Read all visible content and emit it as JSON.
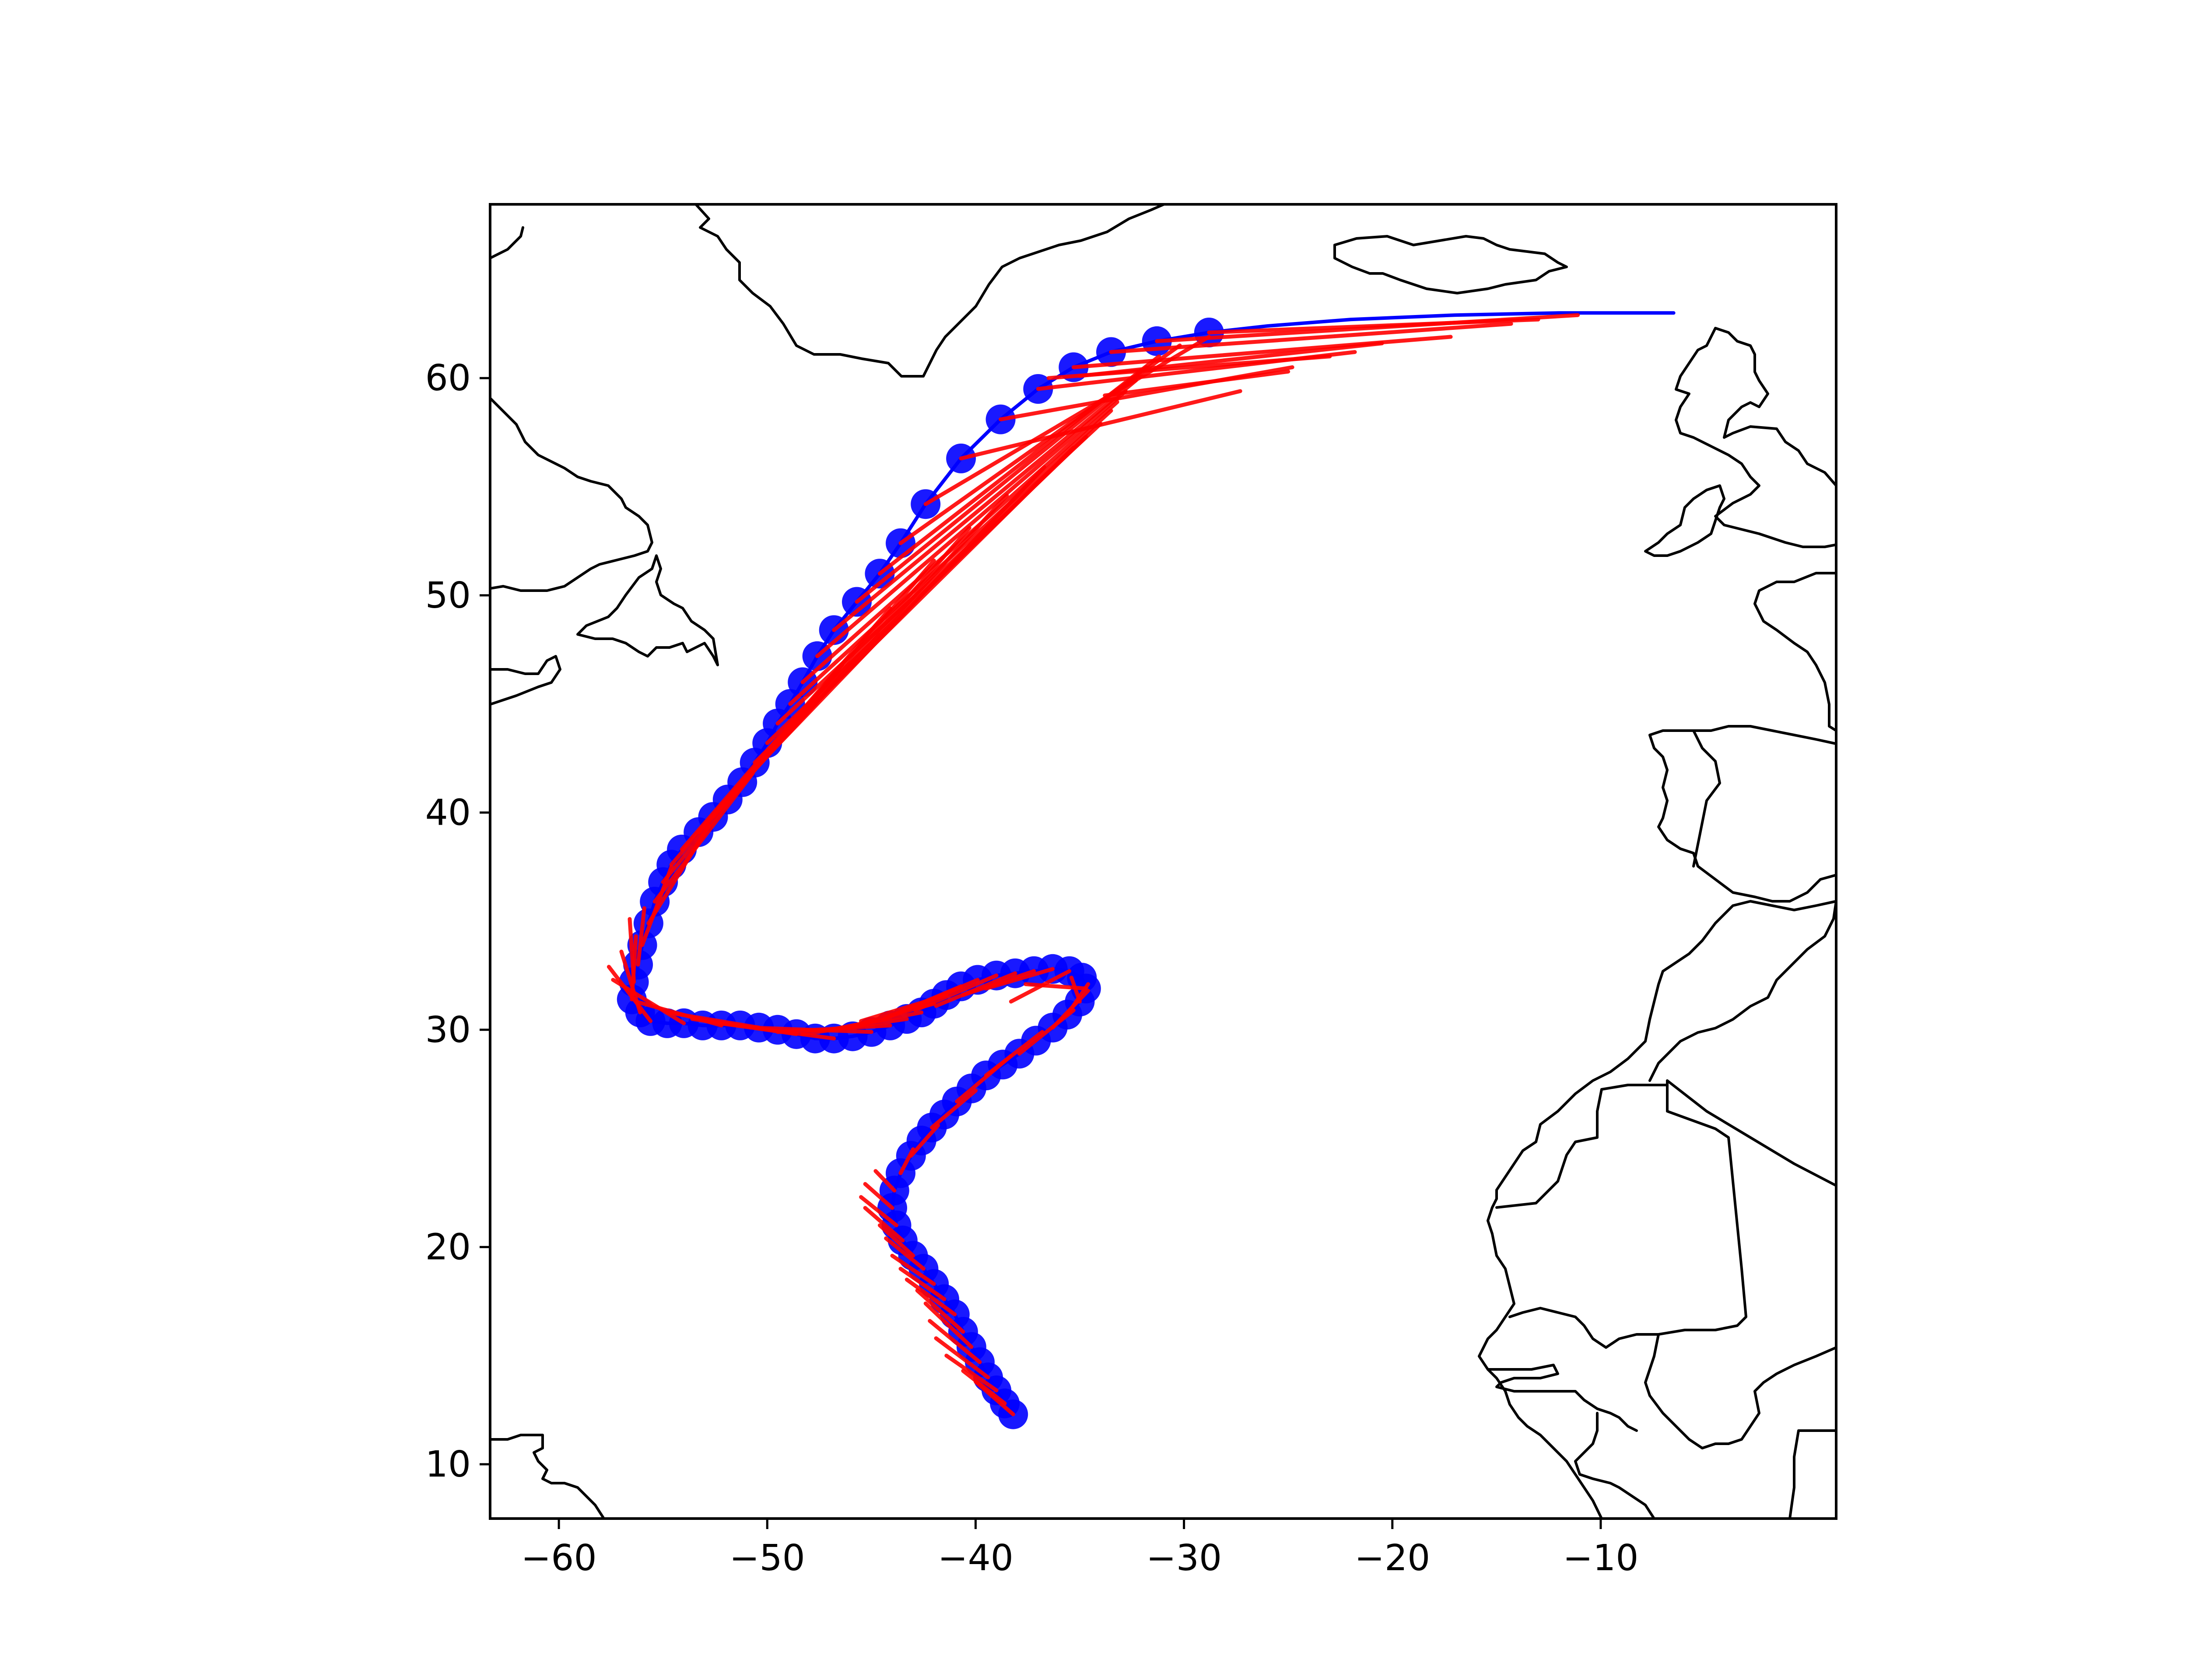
{
  "chart_data": {
    "type": "map-trajectory",
    "xlim": [
      -63.3,
      1.3
    ],
    "ylim": [
      7.5,
      68.0
    ],
    "x_ticks": [
      {
        "value": -60,
        "label": "−60"
      },
      {
        "value": -50,
        "label": "−50"
      },
      {
        "value": -40,
        "label": "−40"
      },
      {
        "value": -30,
        "label": "−30"
      },
      {
        "value": -20,
        "label": "−20"
      },
      {
        "value": -10,
        "label": "−10"
      }
    ],
    "y_ticks": [
      {
        "value": 10,
        "label": "10"
      },
      {
        "value": 20,
        "label": "20"
      },
      {
        "value": 30,
        "label": "30"
      },
      {
        "value": 40,
        "label": "40"
      },
      {
        "value": 50,
        "label": "50"
      },
      {
        "value": 60,
        "label": "60"
      }
    ],
    "grid": false,
    "colors": {
      "observed": "#0000ff",
      "forecast": "#ff0000",
      "coastline": "#000000"
    },
    "observed_track": [
      [
        -38.2,
        12.3
      ],
      [
        -38.6,
        12.8
      ],
      [
        -39.0,
        13.4
      ],
      [
        -39.4,
        14.0
      ],
      [
        -39.8,
        14.7
      ],
      [
        -40.2,
        15.4
      ],
      [
        -40.6,
        16.1
      ],
      [
        -41.0,
        16.9
      ],
      [
        -41.5,
        17.6
      ],
      [
        -42.0,
        18.3
      ],
      [
        -42.5,
        19.0
      ],
      [
        -43.0,
        19.6
      ],
      [
        -43.5,
        20.3
      ],
      [
        -43.8,
        21.0
      ],
      [
        -44.0,
        21.8
      ],
      [
        -43.9,
        22.6
      ],
      [
        -43.6,
        23.4
      ],
      [
        -43.1,
        24.2
      ],
      [
        -42.6,
        24.9
      ],
      [
        -42.1,
        25.5
      ],
      [
        -41.5,
        26.1
      ],
      [
        -40.9,
        26.7
      ],
      [
        -40.2,
        27.3
      ],
      [
        -39.5,
        27.9
      ],
      [
        -38.7,
        28.4
      ],
      [
        -37.9,
        28.9
      ],
      [
        -37.1,
        29.5
      ],
      [
        -36.3,
        30.1
      ],
      [
        -35.6,
        30.7
      ],
      [
        -35.0,
        31.3
      ],
      [
        -34.7,
        31.9
      ],
      [
        -34.9,
        32.4
      ],
      [
        -35.5,
        32.7
      ],
      [
        -36.3,
        32.8
      ],
      [
        -37.2,
        32.7
      ],
      [
        -38.1,
        32.6
      ],
      [
        -39.0,
        32.5
      ],
      [
        -39.9,
        32.3
      ],
      [
        -40.7,
        32.0
      ],
      [
        -41.4,
        31.6
      ],
      [
        -42.0,
        31.2
      ],
      [
        -42.6,
        30.8
      ],
      [
        -43.3,
        30.5
      ],
      [
        -44.1,
        30.2
      ],
      [
        -45.0,
        29.9
      ],
      [
        -45.9,
        29.7
      ],
      [
        -46.8,
        29.6
      ],
      [
        -47.7,
        29.6
      ],
      [
        -48.6,
        29.8
      ],
      [
        -49.5,
        30.0
      ],
      [
        -50.4,
        30.1
      ],
      [
        -51.3,
        30.2
      ],
      [
        -52.2,
        30.2
      ],
      [
        -53.1,
        30.2
      ],
      [
        -54.0,
        30.3
      ],
      [
        -54.8,
        30.3
      ],
      [
        -55.6,
        30.4
      ],
      [
        -56.1,
        30.8
      ],
      [
        -56.5,
        31.4
      ],
      [
        -56.4,
        32.2
      ],
      [
        -56.2,
        33.0
      ],
      [
        -56.0,
        33.9
      ],
      [
        -55.7,
        34.9
      ],
      [
        -55.4,
        35.9
      ],
      [
        -55.0,
        36.8
      ],
      [
        -54.6,
        37.6
      ],
      [
        -54.1,
        38.3
      ],
      [
        -53.3,
        39.1
      ],
      [
        -52.6,
        39.8
      ],
      [
        -51.9,
        40.6
      ],
      [
        -51.2,
        41.4
      ],
      [
        -50.6,
        42.3
      ],
      [
        -50.0,
        43.2
      ],
      [
        -49.5,
        44.1
      ],
      [
        -48.9,
        45.0
      ],
      [
        -48.3,
        46.0
      ],
      [
        -47.6,
        47.2
      ],
      [
        -46.8,
        48.4
      ],
      [
        -45.7,
        49.7
      ],
      [
        -44.6,
        51.0
      ],
      [
        -43.6,
        52.4
      ],
      [
        -42.4,
        54.2
      ],
      [
        -40.7,
        56.3
      ],
      [
        -38.8,
        58.1
      ],
      [
        -37.0,
        59.5
      ],
      [
        -35.3,
        60.5
      ],
      [
        -33.5,
        61.2
      ],
      [
        -31.3,
        61.7
      ],
      [
        -28.8,
        62.1
      ],
      [
        -26.0,
        62.4
      ],
      [
        -22.0,
        62.7
      ],
      [
        -17.0,
        62.9
      ],
      [
        -12.0,
        63.0
      ],
      [
        -6.5,
        63.0
      ]
    ],
    "forecast_segments": [
      [
        [
          -38.2,
          12.3
        ],
        [
          -40.0,
          13.8
        ]
      ],
      [
        [
          -38.6,
          12.8
        ],
        [
          -40.6,
          14.3
        ]
      ],
      [
        [
          -39.0,
          13.4
        ],
        [
          -41.4,
          15.0
        ]
      ],
      [
        [
          -39.4,
          14.0
        ],
        [
          -41.9,
          15.8
        ]
      ],
      [
        [
          -39.8,
          14.7
        ],
        [
          -42.2,
          16.6
        ]
      ],
      [
        [
          -40.2,
          15.4
        ],
        [
          -42.4,
          17.4
        ]
      ],
      [
        [
          -40.6,
          16.1
        ],
        [
          -42.8,
          18.0
        ]
      ],
      [
        [
          -41.0,
          16.9
        ],
        [
          -43.3,
          18.5
        ]
      ],
      [
        [
          -41.5,
          17.6
        ],
        [
          -43.6,
          19.0
        ]
      ],
      [
        [
          -42.0,
          18.3
        ],
        [
          -44.0,
          19.6
        ]
      ],
      [
        [
          -42.5,
          19.0
        ],
        [
          -44.3,
          20.4
        ]
      ],
      [
        [
          -43.0,
          19.6
        ],
        [
          -44.6,
          21.0
        ]
      ],
      [
        [
          -43.5,
          20.3
        ],
        [
          -45.3,
          21.8
        ]
      ],
      [
        [
          -43.8,
          21.0
        ],
        [
          -45.5,
          22.3
        ]
      ],
      [
        [
          -44.0,
          21.8
        ],
        [
          -45.3,
          22.9
        ]
      ],
      [
        [
          -43.9,
          22.6
        ],
        [
          -44.8,
          23.5
        ]
      ],
      [
        [
          -43.6,
          23.4
        ],
        [
          -43.0,
          24.5
        ]
      ],
      [
        [
          -43.1,
          24.2
        ],
        [
          -41.8,
          25.6
        ]
      ],
      [
        [
          -42.1,
          25.5
        ],
        [
          -40.0,
          27.2
        ]
      ],
      [
        [
          -40.9,
          26.7
        ],
        [
          -38.3,
          28.8
        ]
      ],
      [
        [
          -39.5,
          27.9
        ],
        [
          -36.8,
          29.9
        ]
      ],
      [
        [
          -37.9,
          28.9
        ],
        [
          -35.3,
          30.9
        ]
      ],
      [
        [
          -36.3,
          30.1
        ],
        [
          -34.6,
          31.8
        ]
      ],
      [
        [
          -35.6,
          30.7
        ],
        [
          -34.6,
          32.1
        ]
      ],
      [
        [
          -35.0,
          31.3
        ],
        [
          -35.4,
          32.4
        ]
      ],
      [
        [
          -34.7,
          31.9
        ],
        [
          -37.6,
          32.1
        ]
      ],
      [
        [
          -35.5,
          32.7
        ],
        [
          -38.3,
          31.3
        ]
      ],
      [
        [
          -36.3,
          32.8
        ],
        [
          -39.5,
          31.9
        ]
      ],
      [
        [
          -37.2,
          32.7
        ],
        [
          -40.6,
          31.6
        ]
      ],
      [
        [
          -38.1,
          32.6
        ],
        [
          -41.9,
          31.1
        ]
      ],
      [
        [
          -39.0,
          32.5
        ],
        [
          -42.9,
          30.9
        ]
      ],
      [
        [
          -39.9,
          32.3
        ],
        [
          -43.6,
          30.8
        ]
      ],
      [
        [
          -40.7,
          32.0
        ],
        [
          -44.4,
          30.5
        ]
      ],
      [
        [
          -41.4,
          31.6
        ],
        [
          -45.5,
          30.4
        ]
      ],
      [
        [
          -42.0,
          31.2
        ],
        [
          -46.2,
          30.1
        ]
      ],
      [
        [
          -42.6,
          30.8
        ],
        [
          -47.0,
          30.0
        ]
      ],
      [
        [
          -43.3,
          30.5
        ],
        [
          -48.3,
          29.8
        ]
      ],
      [
        [
          -44.1,
          30.2
        ],
        [
          -49.5,
          29.9
        ]
      ],
      [
        [
          -45.0,
          29.9
        ],
        [
          -50.8,
          30.1
        ]
      ],
      [
        [
          -46.8,
          29.6
        ],
        [
          -52.3,
          30.3
        ]
      ],
      [
        [
          -48.6,
          29.8
        ],
        [
          -53.6,
          30.5
        ]
      ],
      [
        [
          -50.4,
          30.1
        ],
        [
          -54.8,
          30.8
        ]
      ],
      [
        [
          -52.2,
          30.2
        ],
        [
          -56.3,
          31.3
        ]
      ],
      [
        [
          -54.0,
          30.3
        ],
        [
          -57.4,
          32.3
        ]
      ],
      [
        [
          -55.6,
          30.4
        ],
        [
          -57.6,
          32.9
        ]
      ],
      [
        [
          -56.1,
          30.8
        ],
        [
          -57.0,
          33.6
        ]
      ],
      [
        [
          -56.5,
          31.4
        ],
        [
          -56.3,
          34.3
        ]
      ],
      [
        [
          -56.4,
          32.2
        ],
        [
          -56.6,
          35.1
        ]
      ],
      [
        [
          -56.2,
          33.0
        ],
        [
          -55.9,
          35.6
        ]
      ],
      [
        [
          -56.0,
          33.9
        ],
        [
          -54.6,
          37.5
        ]
      ],
      [
        [
          -55.7,
          34.9
        ],
        [
          -52.8,
          39.4
        ]
      ],
      [
        [
          -55.4,
          35.9
        ],
        [
          -50.7,
          41.8
        ]
      ],
      [
        [
          -55.0,
          36.8
        ],
        [
          -48.6,
          44.3
        ]
      ],
      [
        [
          -54.6,
          37.6
        ],
        [
          -46.4,
          46.8
        ]
      ],
      [
        [
          -54.1,
          38.3
        ],
        [
          -44.1,
          49.4
        ]
      ],
      [
        [
          -53.3,
          39.1
        ],
        [
          -42.0,
          51.6
        ]
      ],
      [
        [
          -52.6,
          39.8
        ],
        [
          -40.3,
          53.1
        ]
      ],
      [
        [
          -51.9,
          40.6
        ],
        [
          -38.5,
          54.6
        ]
      ],
      [
        [
          -51.2,
          41.4
        ],
        [
          -36.7,
          55.9
        ]
      ],
      [
        [
          -50.6,
          42.3
        ],
        [
          -35.3,
          56.8
        ]
      ],
      [
        [
          -50.0,
          43.2
        ],
        [
          -34.7,
          57.3
        ]
      ],
      [
        [
          -49.5,
          44.1
        ],
        [
          -34.0,
          57.9
        ]
      ],
      [
        [
          -48.9,
          45.0
        ],
        [
          -33.5,
          58.5
        ]
      ],
      [
        [
          -48.3,
          46.0
        ],
        [
          -33.2,
          58.9
        ]
      ],
      [
        [
          -47.6,
          47.2
        ],
        [
          -32.8,
          59.4
        ]
      ],
      [
        [
          -46.8,
          48.4
        ],
        [
          -32.3,
          59.9
        ]
      ],
      [
        [
          -45.7,
          49.7
        ],
        [
          -31.8,
          60.5
        ]
      ],
      [
        [
          -44.6,
          51.0
        ],
        [
          -31.2,
          61.0
        ]
      ],
      [
        [
          -43.6,
          52.4
        ],
        [
          -30.2,
          61.5
        ]
      ],
      [
        [
          -42.4,
          54.2
        ],
        [
          -28.8,
          61.9
        ]
      ],
      [
        [
          -40.7,
          56.3
        ],
        [
          -27.3,
          59.4
        ]
      ],
      [
        [
          -38.8,
          58.1
        ],
        [
          -24.8,
          60.5
        ]
      ],
      [
        [
          -37.0,
          59.5
        ],
        [
          -21.8,
          61.2
        ]
      ],
      [
        [
          -35.3,
          60.5
        ],
        [
          -17.2,
          61.9
        ]
      ],
      [
        [
          -33.5,
          61.2
        ],
        [
          -14.3,
          62.5
        ]
      ],
      [
        [
          -31.3,
          61.7
        ],
        [
          -11.1,
          62.9
        ]
      ],
      [
        [
          -28.8,
          62.1
        ],
        [
          -13.0,
          62.7
        ]
      ],
      [
        [
          -35.0,
          60.1
        ],
        [
          -20.5,
          61.6
        ]
      ],
      [
        [
          -33.8,
          59.2
        ],
        [
          -25.0,
          60.3
        ]
      ],
      [
        [
          -36.5,
          60.0
        ],
        [
          -23.0,
          61.0
        ]
      ]
    ]
  }
}
